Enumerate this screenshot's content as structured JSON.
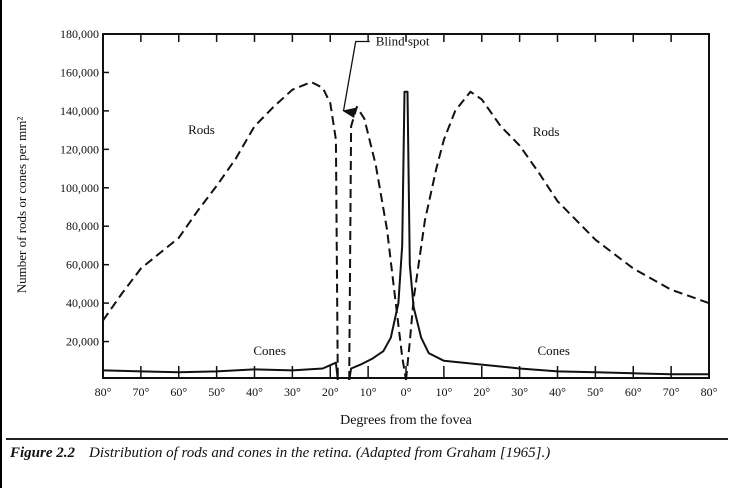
{
  "chart_data": {
    "type": "line",
    "title": "",
    "xlabel": "Degrees from the fovea",
    "ylabel": "Number of rods or cones per mm²",
    "xlim": [
      -80,
      80
    ],
    "ylim": [
      0,
      180000
    ],
    "x_ticks": [
      -80,
      -70,
      -60,
      -50,
      -40,
      -30,
      -20,
      -10,
      0,
      10,
      20,
      30,
      40,
      50,
      60,
      70,
      80
    ],
    "x_tick_labels": [
      "80°",
      "70°",
      "60°",
      "50°",
      "40°",
      "30°",
      "20°",
      "10°",
      "0°",
      "10°",
      "20°",
      "30°",
      "40°",
      "50°",
      "60°",
      "70°",
      "80°"
    ],
    "y_ticks": [
      20000,
      40000,
      60000,
      80000,
      100000,
      120000,
      140000,
      160000,
      180000
    ],
    "y_tick_labels": [
      "20,000",
      "40,000",
      "60,000",
      "80,000",
      "100,000",
      "120,000",
      "140,000",
      "160,000",
      "180,000"
    ],
    "grid": false,
    "series": [
      {
        "name": "Rods",
        "style": "dashed",
        "segments": [
          [
            [
              -80,
              31000
            ],
            [
              -75,
              45000
            ],
            [
              -70,
              58000
            ],
            [
              -65,
              66000
            ],
            [
              -60,
              74000
            ],
            [
              -55,
              88000
            ],
            [
              -50,
              101000
            ],
            [
              -45,
              115000
            ],
            [
              -40,
              132000
            ],
            [
              -35,
              142000
            ],
            [
              -30,
              151000
            ],
            [
              -25,
              155000
            ],
            [
              -22,
              152000
            ],
            [
              -20,
              144000
            ],
            [
              -18.5,
              125000
            ],
            [
              -18,
              0
            ]
          ],
          [
            [
              -15,
              0
            ],
            [
              -14.5,
              132000
            ],
            [
              -13,
              142000
            ],
            [
              -11,
              136000
            ],
            [
              -8,
              112000
            ],
            [
              -5,
              78000
            ],
            [
              -3,
              45000
            ],
            [
              -1,
              12000
            ],
            [
              0,
              0
            ]
          ],
          [
            [
              0,
              0
            ],
            [
              1,
              20000
            ],
            [
              2,
              42000
            ],
            [
              5,
              83000
            ],
            [
              8,
              110000
            ],
            [
              10,
              125000
            ],
            [
              13,
              140000
            ],
            [
              17,
              150000
            ],
            [
              20,
              146000
            ],
            [
              25,
              132000
            ],
            [
              30,
              122000
            ],
            [
              35,
              108000
            ],
            [
              40,
              93000
            ],
            [
              50,
              73000
            ],
            [
              60,
              58000
            ],
            [
              70,
              47000
            ],
            [
              80,
              40000
            ]
          ]
        ]
      },
      {
        "name": "Cones",
        "style": "solid",
        "segments": [
          [
            [
              -80,
              5000
            ],
            [
              -70,
              4500
            ],
            [
              -60,
              4000
            ],
            [
              -50,
              4500
            ],
            [
              -40,
              5500
            ],
            [
              -30,
              5000
            ],
            [
              -22,
              6000
            ],
            [
              -18.5,
              9000
            ],
            [
              -18,
              0
            ]
          ],
          [
            [
              -15,
              0
            ],
            [
              -14.5,
              6000
            ],
            [
              -12,
              8000
            ],
            [
              -9,
              11000
            ],
            [
              -6,
              15000
            ],
            [
              -4,
              22000
            ],
            [
              -2,
              40000
            ],
            [
              -1,
              70000
            ],
            [
              -0.4,
              150000
            ],
            [
              0.4,
              150000
            ],
            [
              1,
              60000
            ],
            [
              2,
              38000
            ],
            [
              4,
              22000
            ],
            [
              6,
              14000
            ],
            [
              10,
              10000
            ],
            [
              20,
              8000
            ],
            [
              30,
              6000
            ],
            [
              40,
              4500
            ],
            [
              50,
              4000
            ],
            [
              60,
              3500
            ],
            [
              70,
              3000
            ],
            [
              80,
              3000
            ]
          ]
        ]
      }
    ],
    "annotations": [
      {
        "text": "Rods",
        "x": -54,
        "y": 128000
      },
      {
        "text": "Rods",
        "x": 37,
        "y": 127000
      },
      {
        "text": "Cones",
        "x": -36,
        "y": 13000
      },
      {
        "text": "Cones",
        "x": 39,
        "y": 13000
      },
      {
        "text": "Blind spot",
        "x": -8,
        "y": 174000,
        "arrow_to": [
          -16.5,
          140000
        ]
      }
    ]
  },
  "caption": {
    "label": "Figure 2.2",
    "text": "Distribution of rods and cones in the retina. (Adapted from Graham [1965].)"
  }
}
